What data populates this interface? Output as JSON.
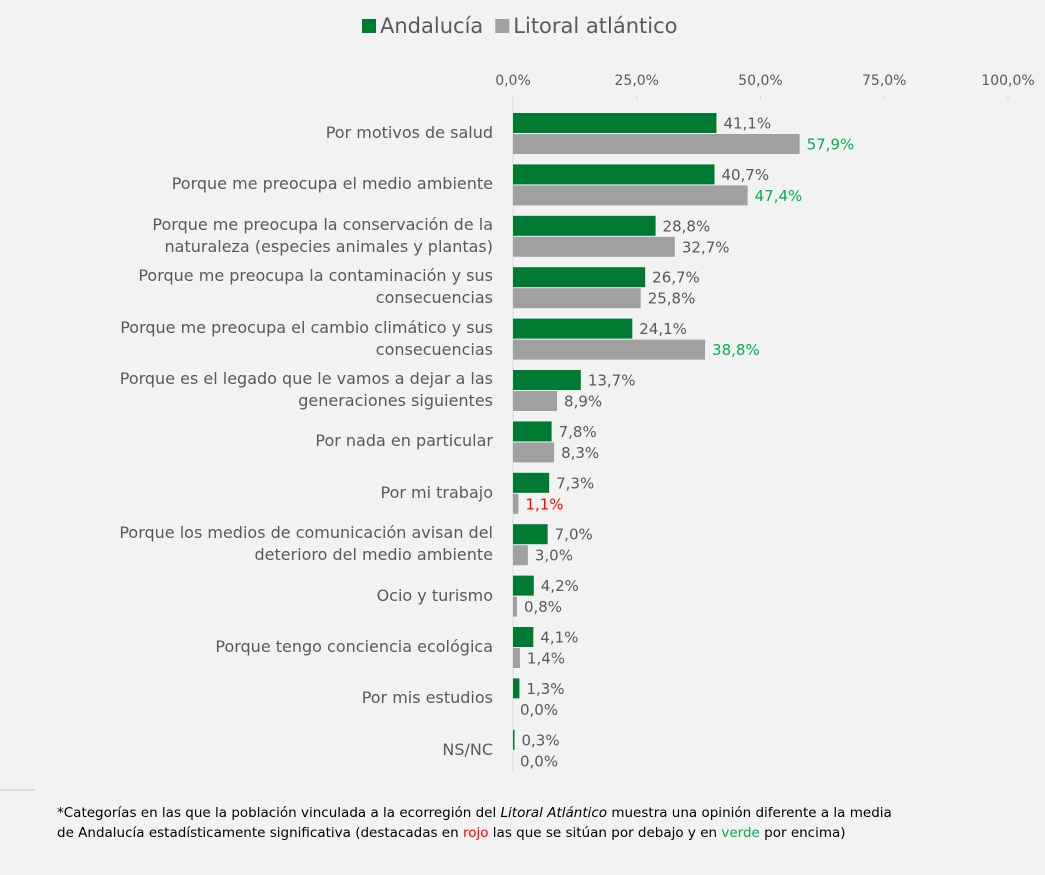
{
  "chart_data": {
    "type": "hbar",
    "categories": [
      "Por motivos de salud",
      "Porque me preocupa el medio ambiente",
      "Porque me preocupa la conservación de la\nnaturaleza (especies animales y plantas)",
      "Porque me preocupa la contaminación y sus\nconsecuencias",
      "Porque me preocupa el cambio climático y sus\nconsecuencias",
      "Porque es el legado que le vamos a dejar a las\ngeneraciones siguientes",
      "Por nada en particular",
      "Por mi trabajo",
      "Porque los medios de comunicación avisan del\ndeterioro del medio ambiente",
      "Ocio y turismo",
      "Porque tengo conciencia ecológica",
      "Por mis estudios",
      "NS/NC"
    ],
    "series": [
      {
        "name": "Andalucía",
        "color": "#007a33",
        "values": [
          41.1,
          40.7,
          28.8,
          26.7,
          24.1,
          13.7,
          7.8,
          7.3,
          7.0,
          4.2,
          4.1,
          1.3,
          0.3
        ],
        "value_labels": [
          "41,1%",
          "40,7%",
          "28,8%",
          "26,7%",
          "24,1%",
          "13,7%",
          "7,8%",
          "7,3%",
          "7,0%",
          "4,2%",
          "4,1%",
          "1,3%",
          "0,3%"
        ],
        "value_label_colors": [
          "#595959",
          "#595959",
          "#595959",
          "#595959",
          "#595959",
          "#595959",
          "#595959",
          "#595959",
          "#595959",
          "#595959",
          "#595959",
          "#595959",
          "#595959"
        ]
      },
      {
        "name": "Litoral atlántico",
        "color": "#a0a0a0",
        "values": [
          57.9,
          47.4,
          32.7,
          25.8,
          38.8,
          8.9,
          8.3,
          1.1,
          3.0,
          0.8,
          1.4,
          0.0,
          0.0
        ],
        "value_labels": [
          "57,9%",
          "47,4%",
          "32,7%",
          "25,8%",
          "38,8%",
          "8,9%",
          "8,3%",
          "1,1%",
          "3,0%",
          "0,8%",
          "1,4%",
          "0,0%",
          "0,0%"
        ],
        "value_label_colors": [
          "#00b050",
          "#00b050",
          "#595959",
          "#595959",
          "#00b050",
          "#595959",
          "#595959",
          "#ff0000",
          "#595959",
          "#595959",
          "#595959",
          "#595959",
          "#595959"
        ]
      }
    ],
    "xlim": [
      0,
      100
    ],
    "xticks": [
      {
        "value": 0,
        "label": "0,0%"
      },
      {
        "value": 25,
        "label": "25,0%"
      },
      {
        "value": 50,
        "label": "50,0%"
      },
      {
        "value": 75,
        "label": "75,0%"
      },
      {
        "value": 100,
        "label": "100,0%"
      }
    ],
    "legend": "top",
    "footnote": [
      [
        {
          "text": "*Categorías en las que la población vinculada a la ecorregión del "
        },
        {
          "text": "Litoral Atlántico",
          "italic": true
        },
        {
          "text": " muestra una opinión diferente a la media"
        }
      ],
      [
        {
          "text": "de Andalucía estadísticamente significativa (destacadas en "
        },
        {
          "text": "rojo",
          "color": "#ff0000"
        },
        {
          "text": " las que se sitúan por debajo y en "
        },
        {
          "text": "verde",
          "color": "#00b050"
        },
        {
          "text": " por encima)"
        }
      ]
    ]
  }
}
